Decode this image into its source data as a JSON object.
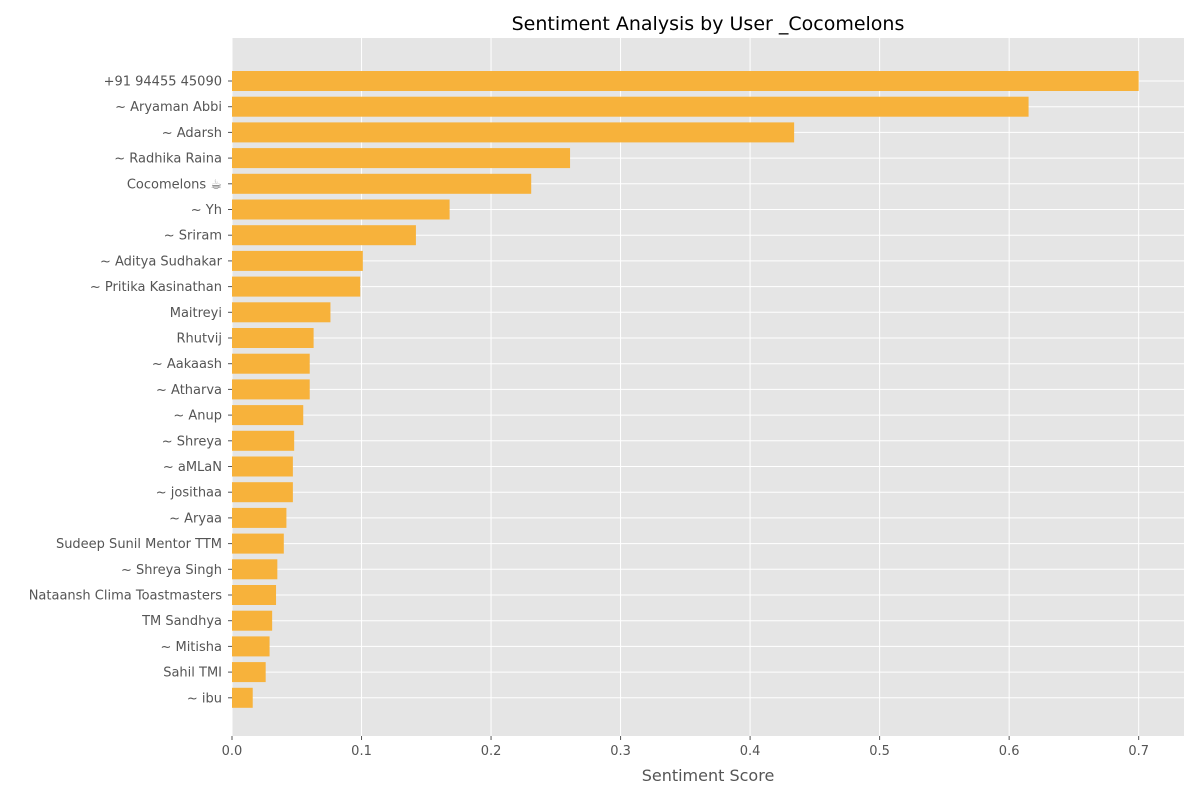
{
  "chart_data": {
    "type": "bar",
    "orientation": "horizontal",
    "title": "Sentiment Analysis by User _Cocomelons",
    "xlabel": "Sentiment Score",
    "ylabel": "",
    "xlim": [
      0,
      0.735
    ],
    "xticks": [
      "0.0",
      "0.1",
      "0.2",
      "0.3",
      "0.4",
      "0.5",
      "0.6",
      "0.7"
    ],
    "grid": true,
    "legend": "none",
    "colors": {
      "bar": "#f7b23b",
      "plot_bg": "#e5e5e5",
      "grid": "#ffffff"
    },
    "categories": [
      "+91 94455 45090",
      "~ Aryaman Abbi",
      "~ Adarsh",
      "~ Radhika Raina",
      "Cocomelons ☕",
      "~ Yh",
      "~ Sriram",
      "~ Aditya Sudhakar",
      "~ Pritika Kasinathan",
      "Maitreyi",
      "Rhutvij",
      "~ Aakaash",
      "~ Atharva",
      "~ Anup",
      "~ Shreya",
      "~ aMLaN",
      "~ josithaa",
      "~ Aryaa",
      "Sudeep Sunil Mentor TTM",
      "~ Shreya Singh",
      "Nataansh Clima Toastmasters",
      "TM Sandhya",
      "~ Mitisha",
      "Sahil TMI",
      "~ ibu"
    ],
    "values": [
      0.7,
      0.615,
      0.434,
      0.261,
      0.231,
      0.168,
      0.142,
      0.101,
      0.099,
      0.076,
      0.063,
      0.06,
      0.06,
      0.055,
      0.048,
      0.047,
      0.047,
      0.042,
      0.04,
      0.035,
      0.034,
      0.031,
      0.029,
      0.026,
      0.016
    ]
  }
}
